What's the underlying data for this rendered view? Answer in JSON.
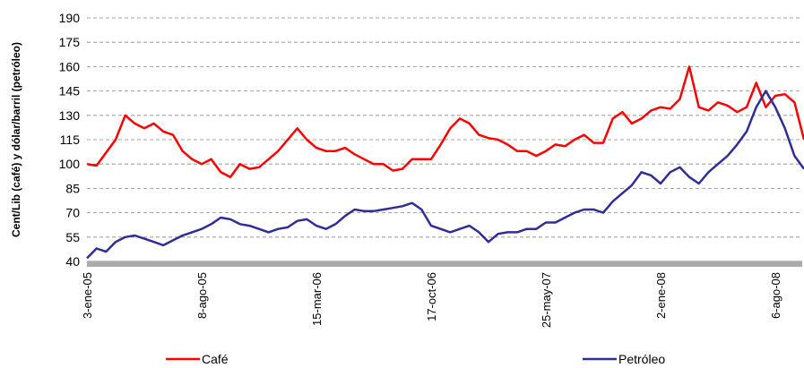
{
  "chart_data": {
    "type": "line",
    "y_label": "Cent/Lib (café) y dólar/barril (petróleo)",
    "categories": [
      "3-ene-05",
      null,
      null,
      null,
      null,
      null,
      null,
      null,
      null,
      null,
      null,
      null,
      "8-ago-05",
      null,
      null,
      null,
      null,
      null,
      null,
      null,
      null,
      null,
      null,
      null,
      "15-mar-06",
      null,
      null,
      null,
      null,
      null,
      null,
      null,
      null,
      null,
      null,
      null,
      "17-oct-06",
      null,
      null,
      null,
      null,
      null,
      null,
      null,
      null,
      null,
      null,
      null,
      "25-may-07",
      null,
      null,
      null,
      null,
      null,
      null,
      null,
      null,
      null,
      null,
      null,
      "2-ene-08",
      null,
      null,
      null,
      null,
      null,
      null,
      null,
      null,
      null,
      null,
      null,
      "6-ago-08",
      null,
      null,
      null
    ],
    "series": [
      {
        "name": "Café",
        "color": "#ff0000",
        "values": [
          100,
          99,
          107,
          115,
          130,
          125,
          122,
          125,
          120,
          118,
          108,
          103,
          100,
          103,
          95,
          92,
          100,
          97,
          98,
          103,
          108,
          115,
          122,
          115,
          110,
          108,
          108,
          110,
          106,
          103,
          100,
          100,
          96,
          97,
          103,
          103,
          103,
          112,
          122,
          128,
          125,
          118,
          116,
          115,
          112,
          108,
          108,
          105,
          108,
          112,
          111,
          115,
          118,
          113,
          113,
          128,
          132,
          125,
          128,
          133,
          135,
          134,
          140,
          160,
          135,
          133,
          138,
          136,
          132,
          135,
          150,
          135,
          142,
          143,
          138,
          115
        ]
      },
      {
        "name": "Petróleo",
        "color": "#2e2e96",
        "values": [
          42,
          48,
          46,
          52,
          55,
          56,
          54,
          52,
          50,
          53,
          56,
          58,
          60,
          63,
          67,
          66,
          63,
          62,
          60,
          58,
          60,
          61,
          65,
          66,
          62,
          60,
          63,
          68,
          72,
          71,
          71,
          72,
          73,
          74,
          76,
          72,
          62,
          60,
          58,
          60,
          62,
          58,
          52,
          57,
          58,
          58,
          60,
          60,
          64,
          64,
          67,
          70,
          72,
          72,
          70,
          77,
          82,
          87,
          95,
          93,
          88,
          95,
          98,
          92,
          88,
          95,
          100,
          105,
          112,
          120,
          135,
          145,
          135,
          122,
          105,
          97
        ]
      }
    ],
    "ylim": [
      40,
      190
    ],
    "yticks": [
      40,
      55,
      70,
      85,
      100,
      115,
      130,
      145,
      160,
      175,
      190
    ],
    "grid": true,
    "legend": "bottom"
  }
}
